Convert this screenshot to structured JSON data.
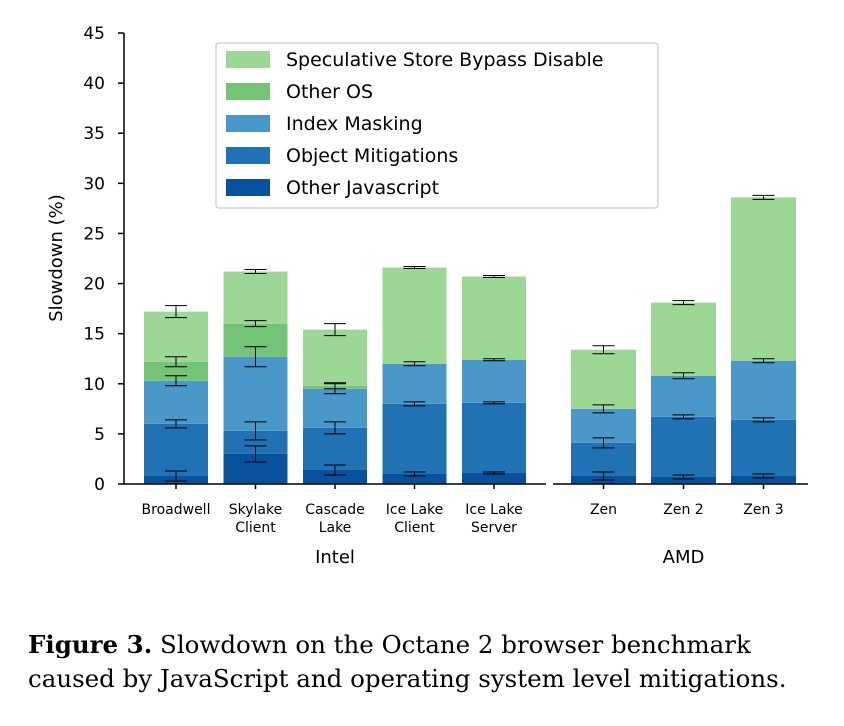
{
  "chart_data": {
    "type": "bar",
    "stacked": true,
    "ylabel": "Slowdown (%)",
    "ylim": [
      0,
      45
    ],
    "yticks": [
      0,
      5,
      10,
      15,
      20,
      25,
      30,
      35,
      40,
      45
    ],
    "grid": false,
    "legend_position": "top-center",
    "groups": [
      {
        "name": "Intel",
        "categories": [
          {
            "label": [
              "Broadwell"
            ]
          },
          {
            "label": [
              "Skylake",
              "Client"
            ]
          },
          {
            "label": [
              "Cascade",
              "Lake"
            ]
          },
          {
            "label": [
              "Ice Lake",
              "Client"
            ]
          },
          {
            "label": [
              "Ice Lake",
              "Server"
            ]
          }
        ]
      },
      {
        "name": "AMD",
        "categories": [
          {
            "label": [
              "Zen"
            ]
          },
          {
            "label": [
              "Zen 2"
            ]
          },
          {
            "label": [
              "Zen 3"
            ]
          }
        ]
      }
    ],
    "series": [
      {
        "name": "Other Javascript",
        "color": "#08519c",
        "values": [
          0.8,
          3.0,
          1.4,
          1.0,
          1.1,
          0.8,
          0.7,
          0.8
        ],
        "err": [
          0.5,
          0.8,
          0.5,
          0.2,
          0.1,
          0.4,
          0.2,
          0.2
        ]
      },
      {
        "name": "Object Mitigations",
        "color": "#2171b5",
        "values": [
          5.2,
          2.3,
          4.2,
          7.0,
          7.0,
          3.3,
          6.0,
          5.6
        ],
        "err": [
          0.4,
          0.9,
          0.6,
          0.2,
          0.1,
          0.5,
          0.2,
          0.2
        ]
      },
      {
        "name": "Index Masking",
        "color": "#4a98c9",
        "values": [
          4.3,
          7.4,
          3.9,
          4.0,
          4.3,
          3.4,
          4.1,
          5.9
        ],
        "err": [
          0.5,
          1.0,
          0.5,
          0.2,
          0.1,
          0.4,
          0.3,
          0.2
        ]
      },
      {
        "name": "Other OS",
        "color": "#73c476",
        "values": [
          1.9,
          3.3,
          0.3,
          0.0,
          0.0,
          0.0,
          0.0,
          0.0
        ],
        "err": [
          0.5,
          0.3,
          0.3,
          0.0,
          0.0,
          0.0,
          0.0,
          0.0
        ]
      },
      {
        "name": "Speculative Store Bypass Disable",
        "color": "#9dd795",
        "values": [
          5.0,
          5.2,
          5.6,
          9.6,
          8.3,
          5.9,
          7.3,
          16.3
        ],
        "err": [
          0.6,
          0.2,
          0.6,
          0.1,
          0.1,
          0.4,
          0.2,
          0.2
        ]
      }
    ]
  },
  "caption": {
    "label": "Figure 3.",
    "text": " Slowdown on the Octane 2 browser benchmark caused by JavaScript and operating system level mitigations."
  }
}
